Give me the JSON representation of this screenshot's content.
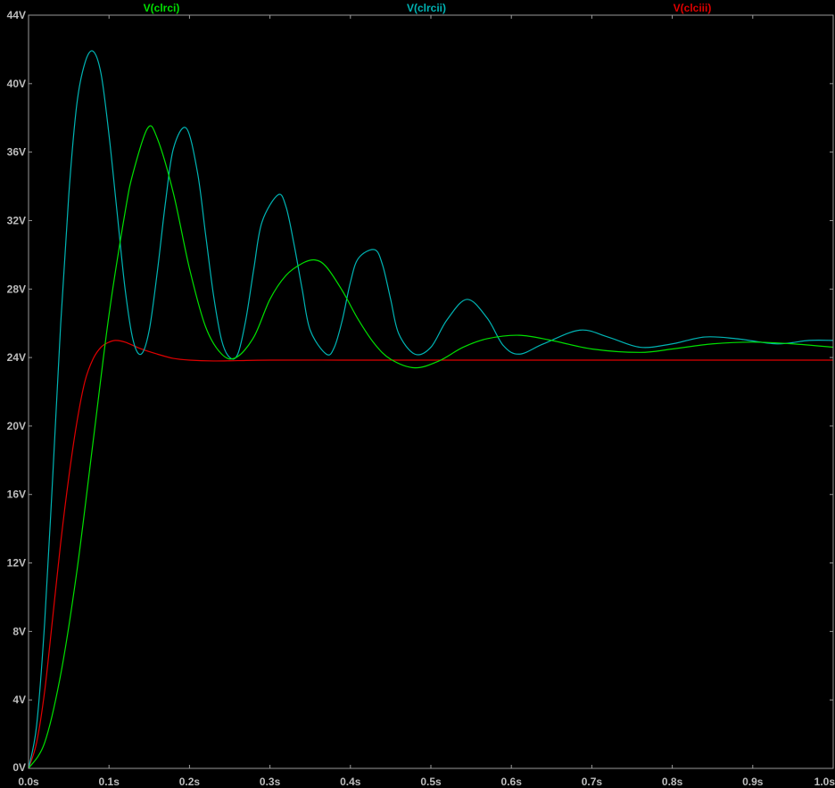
{
  "chart_data": {
    "type": "line",
    "title": "",
    "xlabel": "",
    "ylabel": "",
    "xlim": [
      0,
      1.0
    ],
    "ylim": [
      0,
      44
    ],
    "grid": false,
    "legend_position": "top",
    "x_ticks": [
      {
        "value": 0.0,
        "label": "0.0s"
      },
      {
        "value": 0.1,
        "label": "0.1s"
      },
      {
        "value": 0.2,
        "label": "0.2s"
      },
      {
        "value": 0.3,
        "label": "0.3s"
      },
      {
        "value": 0.4,
        "label": "0.4s"
      },
      {
        "value": 0.5,
        "label": "0.5s"
      },
      {
        "value": 0.6,
        "label": "0.6s"
      },
      {
        "value": 0.7,
        "label": "0.7s"
      },
      {
        "value": 0.8,
        "label": "0.8s"
      },
      {
        "value": 0.9,
        "label": "0.9s"
      },
      {
        "value": 1.0,
        "label": "1.0s"
      }
    ],
    "y_ticks": [
      {
        "value": 0,
        "label": "0V"
      },
      {
        "value": 4,
        "label": "4V"
      },
      {
        "value": 8,
        "label": "8V"
      },
      {
        "value": 12,
        "label": "12V"
      },
      {
        "value": 16,
        "label": "16V"
      },
      {
        "value": 20,
        "label": "20V"
      },
      {
        "value": 24,
        "label": "24V"
      },
      {
        "value": 28,
        "label": "28V"
      },
      {
        "value": 32,
        "label": "32V"
      },
      {
        "value": 36,
        "label": "36V"
      },
      {
        "value": 40,
        "label": "40V"
      },
      {
        "value": 44,
        "label": "44V"
      }
    ],
    "series": [
      {
        "name": "V(clrci)",
        "color": "#00e000",
        "x": [
          0,
          0.02,
          0.04,
          0.06,
          0.08,
          0.1,
          0.12,
          0.13,
          0.148,
          0.16,
          0.18,
          0.2,
          0.22,
          0.24,
          0.258,
          0.28,
          0.3,
          0.32,
          0.34,
          0.356,
          0.37,
          0.39,
          0.41,
          0.43,
          0.45,
          0.48,
          0.51,
          0.54,
          0.57,
          0.61,
          0.65,
          0.7,
          0.76,
          0.8,
          0.85,
          0.9,
          0.95,
          1.0
        ],
        "y": [
          0,
          1.5,
          5.5,
          11.5,
          19.0,
          26.5,
          32.5,
          34.8,
          37.4,
          36.8,
          33.6,
          29.2,
          25.8,
          24.2,
          24.0,
          25.2,
          27.4,
          28.8,
          29.5,
          29.7,
          29.3,
          27.9,
          26.2,
          24.8,
          23.9,
          23.4,
          23.8,
          24.6,
          25.1,
          25.3,
          25.0,
          24.5,
          24.3,
          24.5,
          24.8,
          24.9,
          24.8,
          24.6
        ]
      },
      {
        "name": "V(clrcii)",
        "color": "#00b4b4",
        "x": [
          0,
          0.01,
          0.02,
          0.03,
          0.04,
          0.05,
          0.06,
          0.07,
          0.08,
          0.09,
          0.1,
          0.11,
          0.12,
          0.13,
          0.14,
          0.15,
          0.16,
          0.17,
          0.18,
          0.196,
          0.21,
          0.22,
          0.23,
          0.24,
          0.25,
          0.26,
          0.27,
          0.28,
          0.29,
          0.31,
          0.32,
          0.33,
          0.34,
          0.35,
          0.37,
          0.38,
          0.39,
          0.4,
          0.41,
          0.43,
          0.44,
          0.45,
          0.46,
          0.48,
          0.5,
          0.52,
          0.545,
          0.57,
          0.59,
          0.61,
          0.64,
          0.685,
          0.72,
          0.76,
          0.8,
          0.84,
          0.88,
          0.93,
          0.97,
          1.0
        ],
        "y": [
          0,
          2.5,
          8.5,
          17.0,
          26.0,
          33.5,
          38.8,
          41.2,
          41.9,
          40.6,
          37.0,
          32.5,
          28.0,
          25.0,
          24.2,
          25.6,
          29.0,
          33.0,
          36.2,
          37.4,
          34.8,
          31.2,
          27.6,
          25.0,
          24.0,
          24.2,
          26.2,
          29.2,
          31.9,
          33.5,
          32.8,
          30.6,
          28.0,
          25.6,
          24.2,
          24.6,
          26.2,
          28.4,
          29.8,
          30.3,
          29.4,
          27.4,
          25.4,
          24.2,
          24.6,
          26.2,
          27.4,
          26.3,
          24.7,
          24.2,
          24.8,
          25.6,
          25.2,
          24.6,
          24.8,
          25.2,
          25.1,
          24.8,
          25.0,
          25.0
        ]
      },
      {
        "name": "V(clciii)",
        "color": "#e00000",
        "x": [
          0,
          0.01,
          0.02,
          0.03,
          0.04,
          0.05,
          0.06,
          0.07,
          0.08,
          0.09,
          0.1,
          0.108,
          0.12,
          0.14,
          0.16,
          0.18,
          0.2,
          0.23,
          0.26,
          0.3,
          0.4,
          0.5,
          0.6,
          0.7,
          0.8,
          0.9,
          1.0
        ],
        "y": [
          0,
          1.5,
          4.5,
          8.8,
          13.2,
          17.0,
          20.2,
          22.6,
          23.9,
          24.6,
          24.9,
          25.0,
          24.9,
          24.5,
          24.2,
          23.95,
          23.85,
          23.8,
          23.82,
          23.85,
          23.85,
          23.85,
          23.85,
          23.85,
          23.85,
          23.85,
          23.85
        ]
      }
    ]
  }
}
